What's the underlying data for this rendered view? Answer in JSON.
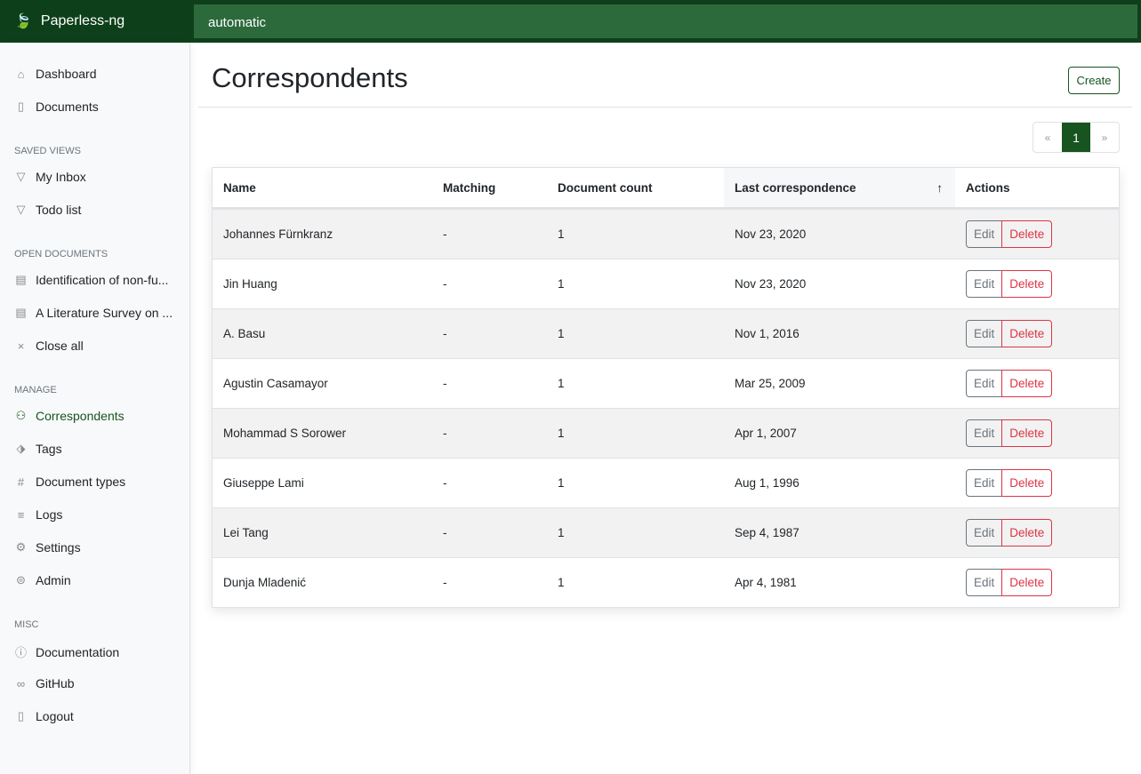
{
  "app": {
    "title": "Paperless-ng",
    "search_value": "automatic"
  },
  "sidebar": {
    "main": [
      {
        "label": "Dashboard",
        "icon": "house-icon"
      },
      {
        "label": "Documents",
        "icon": "documents-icon"
      }
    ],
    "saved_views_header": "Saved views",
    "saved_views": [
      {
        "label": "My Inbox"
      },
      {
        "label": "Todo list"
      }
    ],
    "open_documents_header": "Open documents",
    "open_documents": [
      {
        "label": "Identification of non-fu..."
      },
      {
        "label": "A Literature Survey on ..."
      },
      {
        "label": "Close all"
      }
    ],
    "manage_header": "Manage",
    "manage": [
      {
        "label": "Correspondents",
        "glyph": "👤"
      },
      {
        "label": "Tags",
        "glyph": "⬗"
      },
      {
        "label": "Document types",
        "glyph": "#"
      },
      {
        "label": "Logs",
        "glyph": "≡"
      },
      {
        "label": "Settings",
        "glyph": "⚙"
      },
      {
        "label": "Admin",
        "glyph": "⊜"
      }
    ],
    "misc_header": "Misc",
    "misc": [
      {
        "label": "Documentation",
        "glyph": "?"
      },
      {
        "label": "GitHub",
        "glyph": "∞"
      },
      {
        "label": "Logout",
        "glyph": "▯"
      }
    ]
  },
  "page": {
    "title": "Correspondents",
    "create_label": "Create"
  },
  "pagination": {
    "prev": "«",
    "current": "1",
    "next": "»"
  },
  "table": {
    "columns": [
      "Name",
      "Matching",
      "Document count",
      "Last correspondence",
      "Actions"
    ],
    "sort_indicator": "↑",
    "edit_label": "Edit",
    "delete_label": "Delete",
    "rows": [
      [
        "Johannes Fürnkranz",
        "-",
        "1",
        "Nov 23, 2020"
      ],
      [
        "Jin Huang",
        "-",
        "1",
        "Nov 23, 2020"
      ],
      [
        "A. Basu",
        "-",
        "1",
        "Nov 1, 2016"
      ],
      [
        "Agustin Casamayor",
        "-",
        "1",
        "Mar 25, 2009"
      ],
      [
        "Mohammad S Sorower",
        "-",
        "1",
        "Apr 1, 2007"
      ],
      [
        "Giuseppe Lami",
        "-",
        "1",
        "Aug 1, 1996"
      ],
      [
        "Lei Tang",
        "-",
        "1",
        "Sep 4, 1987"
      ],
      [
        "Dunja Mladenić",
        "-",
        "1",
        "Apr 4, 1981"
      ]
    ]
  },
  "colors": {
    "brand": "#0d401a",
    "accent": "#17541f",
    "danger": "#dc3545"
  }
}
